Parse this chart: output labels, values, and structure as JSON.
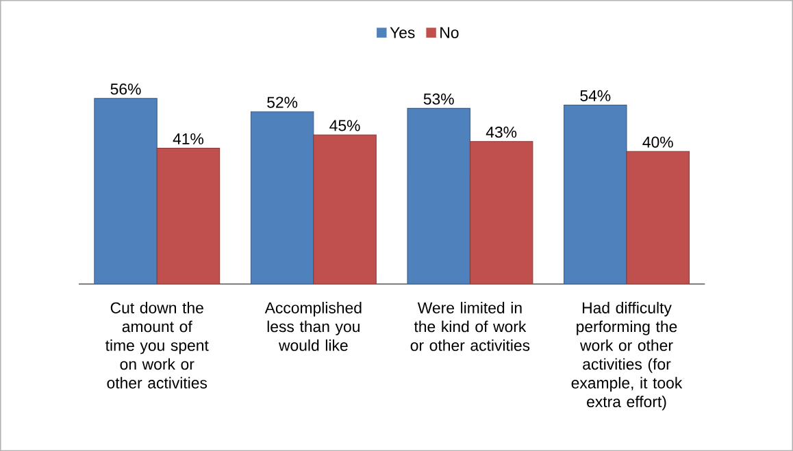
{
  "chart_data": {
    "type": "bar",
    "categories": [
      "Cut down the amount of time you spent on work or other activities",
      "Accomplished less than you would like",
      "Were limited in the kind of work or other activities",
      "Had difficulty performing the work or other activities (for example, it took extra effort)"
    ],
    "series": [
      {
        "name": "Yes",
        "color": "#4f81bd",
        "values": [
          56,
          52,
          53,
          54
        ],
        "value_labels": [
          "56%",
          "52%",
          "53%",
          "54%"
        ]
      },
      {
        "name": "No",
        "color": "#c0504d",
        "values": [
          41,
          45,
          43,
          40
        ],
        "value_labels": [
          "41%",
          "45%",
          "43%",
          "40%"
        ]
      }
    ],
    "legend": "top"
  }
}
